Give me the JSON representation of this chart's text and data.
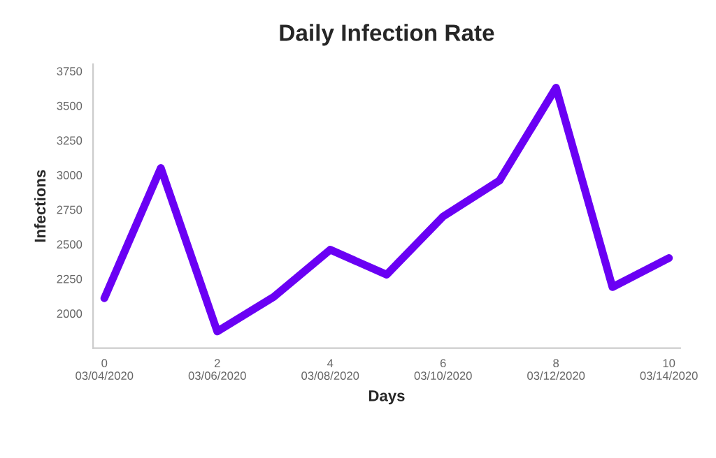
{
  "chart_data": {
    "type": "line",
    "title": "Daily Infection Rate",
    "xlabel": "Days",
    "ylabel": "Infections",
    "categories": [
      "0\n03/04/2020",
      null,
      "2\n03/06/2020",
      null,
      "4\n03/08/2020",
      null,
      "6\n03/10/2020",
      null,
      "8\n03/12/2020",
      null,
      "10\n03/14/2020"
    ],
    "series": [
      {
        "color": "#6a00f4",
        "values": [
          2110,
          3050,
          1870,
          2120,
          2460,
          2280,
          2700,
          2960,
          3630,
          2190,
          2400
        ]
      }
    ],
    "ylim": [
      1750,
      3800
    ],
    "yticks": [
      2000,
      2250,
      2500,
      2750,
      3000,
      3250,
      3500,
      3750
    ],
    "grid": false,
    "legend": false,
    "marker": "none",
    "line_style": "solid"
  }
}
